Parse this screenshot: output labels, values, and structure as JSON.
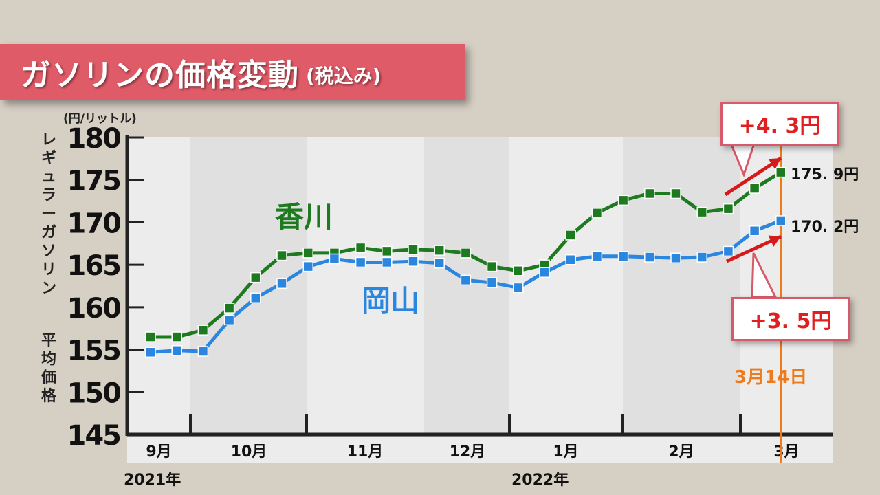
{
  "title": {
    "main": "ガソリンの価格変動",
    "sub": "(税込み)"
  },
  "unit": "(円/リットル)",
  "ylabel_main": "レギュラーガソリン",
  "ylabel_sub": "平均価格",
  "colors": {
    "kagawa": "#1e7a1e",
    "okayama": "#2b86e0",
    "accent": "#ef7a1a",
    "arrow": "#d41a1a"
  },
  "chart_data": {
    "type": "line",
    "ylim": [
      145,
      180
    ],
    "yticks": [
      "145",
      "150",
      "155",
      "160",
      "165",
      "170",
      "175",
      "180"
    ],
    "month_labels": [
      "9月",
      "10月",
      "11月",
      "12月",
      "1月",
      "2月",
      "3月"
    ],
    "year_labels": [
      "2021年",
      "2022年"
    ],
    "series": [
      {
        "name": "香川",
        "values": [
          156.5,
          156.5,
          157.3,
          159.9,
          163.5,
          166.1,
          166.4,
          166.4,
          167.0,
          166.6,
          166.8,
          166.7,
          166.4,
          164.8,
          164.3,
          165.0,
          168.5,
          171.1,
          172.6,
          173.4,
          173.4,
          171.2,
          171.6,
          174.0,
          175.9
        ]
      },
      {
        "name": "岡山",
        "values": [
          154.7,
          154.9,
          154.8,
          158.5,
          161.1,
          162.8,
          164.8,
          165.7,
          165.3,
          165.3,
          165.4,
          165.2,
          163.2,
          162.9,
          162.3,
          164.1,
          165.6,
          166.0,
          166.0,
          165.9,
          165.8,
          165.9,
          166.6,
          169.0,
          170.2
        ]
      }
    ]
  },
  "annotations": {
    "kagawa_change": "+4. 3円",
    "okayama_change": "+3. 5円",
    "kagawa_end": "175. 9円",
    "okayama_end": "170. 2円",
    "date": "3月14日"
  }
}
